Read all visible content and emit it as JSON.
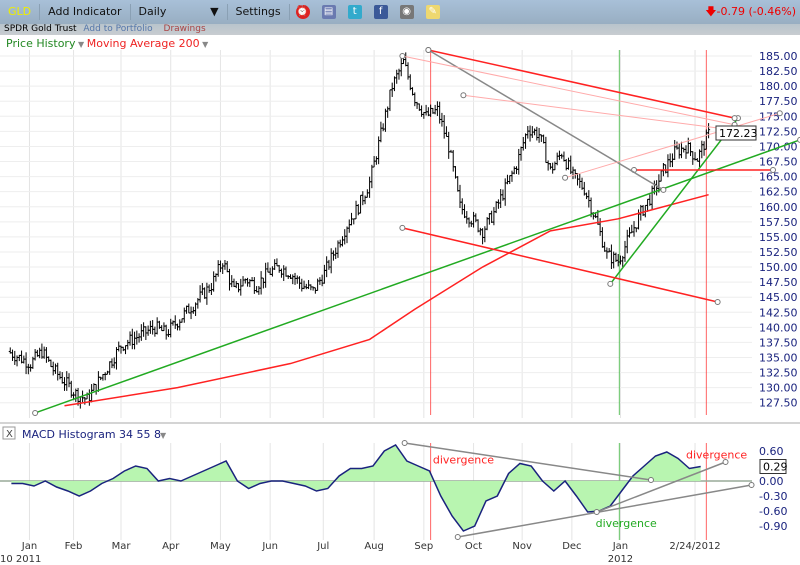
{
  "toolbar": {
    "symbol": "GLD",
    "add_indicator": "Add Indicator",
    "interval": "Daily",
    "settings": "Settings",
    "change": "-0.79 (-0.46%)",
    "icons": [
      "alarm-clock-icon",
      "database-icon",
      "twitter-icon",
      "facebook-icon",
      "camera-icon",
      "note-icon"
    ]
  },
  "subbar": {
    "name": "SPDR Gold Trust",
    "add_portfolio": "Add to Portfolio",
    "drawings": "Drawings"
  },
  "legend": {
    "price": "Price History",
    "ma": "Moving Average 200"
  },
  "colors": {
    "price": "#000000",
    "ma": "#ff0000",
    "macd": "#1a237e",
    "fill": "#b8f5b0",
    "green": "#22aa22",
    "red": "#ff3333"
  },
  "chart_data": [
    {
      "type": "ohlc",
      "title": "GLD Price History",
      "ylim": [
        125,
        187
      ],
      "yticks": [
        "185.00",
        "182.50",
        "180.00",
        "177.50",
        "175.00",
        "172.50",
        "170.00",
        "167.50",
        "165.00",
        "162.50",
        "160.00",
        "157.50",
        "155.00",
        "152.50",
        "150.00",
        "147.50",
        "145.00",
        "142.50",
        "140.00",
        "137.50",
        "135.00",
        "132.50",
        "130.00",
        "127.50"
      ],
      "last_price": "172.23",
      "weekly_close": [
        136,
        135,
        134,
        136,
        133,
        131,
        129,
        128,
        131,
        134,
        137,
        138,
        139,
        140,
        139,
        141,
        143,
        145,
        147,
        151,
        146,
        148,
        147,
        149,
        150,
        149,
        147,
        146,
        149,
        153,
        157,
        160,
        164,
        172,
        180,
        184,
        178,
        175,
        176,
        170,
        160,
        158,
        156,
        159,
        163,
        167,
        173,
        172,
        166,
        169,
        165,
        163,
        158,
        152,
        151,
        155,
        159,
        162,
        166,
        169,
        170,
        168,
        172
      ],
      "ma200": [
        [
          5,
          127
        ],
        [
          15,
          130
        ],
        [
          25,
          134
        ],
        [
          32,
          138
        ],
        [
          36,
          143
        ],
        [
          42,
          150
        ],
        [
          48,
          156
        ],
        [
          54,
          158
        ],
        [
          62,
          162
        ]
      ],
      "trendlines": [
        {
          "color": "green",
          "from": [
            2.4,
            125.8
          ],
          "to": [
            70.1,
            171.1
          ]
        },
        {
          "color": "green",
          "from": [
            53.3,
            147.2
          ],
          "to": [
            64.6,
            174.7
          ]
        },
        {
          "color": "red",
          "from": [
            37.2,
            186
          ],
          "to": [
            64.3,
            174.7
          ]
        },
        {
          "color": "red",
          "from": [
            34.9,
            156.5
          ],
          "to": [
            62.8,
            144.2
          ]
        },
        {
          "color": "red",
          "from": [
            55.4,
            166.1
          ],
          "to": [
            67.7,
            166.1
          ]
        },
        {
          "color": "gray",
          "from": [
            37.2,
            186
          ],
          "to": [
            58,
            162.8
          ]
        },
        {
          "color": "pink",
          "from": [
            34.9,
            185
          ],
          "to": [
            64.3,
            173.6
          ]
        },
        {
          "color": "pink",
          "from": [
            40.3,
            178.5
          ],
          "to": [
            64.3,
            172.7
          ]
        },
        {
          "color": "pink",
          "from": [
            49.3,
            164.8
          ],
          "to": [
            68.3,
            175.5
          ]
        }
      ],
      "vlines": [
        {
          "color": "red",
          "at": 37.4
        },
        {
          "color": "green",
          "at": 54.1
        },
        {
          "color": "red",
          "at": 61.8
        }
      ]
    },
    {
      "type": "area",
      "title": "MACD Histogram 34 55 8",
      "ylim": [
        -1.15,
        0.8
      ],
      "yticks": [
        "0.60",
        "0.29",
        "0.00",
        "-0.30",
        "-0.60",
        "-0.90"
      ],
      "last_value": "0.29",
      "values": [
        -0.05,
        -0.05,
        -0.1,
        0.0,
        -0.12,
        -0.2,
        -0.3,
        -0.2,
        -0.05,
        0.05,
        0.2,
        0.3,
        0.25,
        0.0,
        0.05,
        0.0,
        0.1,
        0.2,
        0.3,
        0.4,
        0.0,
        -0.15,
        -0.05,
        0.0,
        0.0,
        -0.05,
        -0.1,
        -0.2,
        -0.15,
        0.1,
        0.25,
        0.25,
        0.3,
        0.6,
        0.72,
        0.4,
        0.3,
        0.2,
        -0.3,
        -0.7,
        -1.0,
        -0.9,
        -0.4,
        -0.3,
        0.15,
        0.35,
        0.3,
        0.0,
        -0.2,
        0.0,
        -0.3,
        -0.62,
        -0.6,
        -0.5,
        -0.2,
        0.1,
        0.3,
        0.5,
        0.58,
        0.45,
        0.25,
        0.29
      ],
      "trendlines": [
        {
          "from": [
            35.1,
            0.76
          ],
          "to": [
            56.9,
            0.02
          ]
        },
        {
          "from": [
            39.8,
            -1.12
          ],
          "to": [
            65.8,
            -0.08
          ]
        },
        {
          "from": [
            52.1,
            -0.62
          ],
          "to": [
            63.5,
            0.38
          ]
        }
      ],
      "annotations": [
        {
          "text": "divergence",
          "color": "red",
          "at": [
            37.6,
            0.35
          ]
        },
        {
          "text": "divergence",
          "color": "green",
          "at": [
            52.0,
            -0.92
          ]
        },
        {
          "text": "divergence",
          "color": "red",
          "at": [
            60.0,
            0.45
          ]
        }
      ]
    },
    {
      "type": "axis",
      "months": [
        {
          "label": "Jan",
          "w": 1.9
        },
        {
          "label": "Feb",
          "w": 5.8
        },
        {
          "label": "Mar",
          "w": 10
        },
        {
          "label": "Apr",
          "w": 14.4
        },
        {
          "label": "May",
          "w": 18.8
        },
        {
          "label": "Jun",
          "w": 23.2
        },
        {
          "label": "Jul",
          "w": 27.9
        },
        {
          "label": "Aug",
          "w": 32.4
        },
        {
          "label": "Sep",
          "w": 36.8
        },
        {
          "label": "Oct",
          "w": 41.2
        },
        {
          "label": "Nov",
          "w": 45.5
        },
        {
          "label": "Dec",
          "w": 49.9
        },
        {
          "label": "Jan",
          "w": 54.2
        },
        {
          "label": "2/24/2012",
          "w": 60.8
        }
      ],
      "years": [
        {
          "label": "10 2011",
          "w": 0.3
        },
        {
          "label": "2012",
          "w": 54.2
        }
      ]
    }
  ]
}
